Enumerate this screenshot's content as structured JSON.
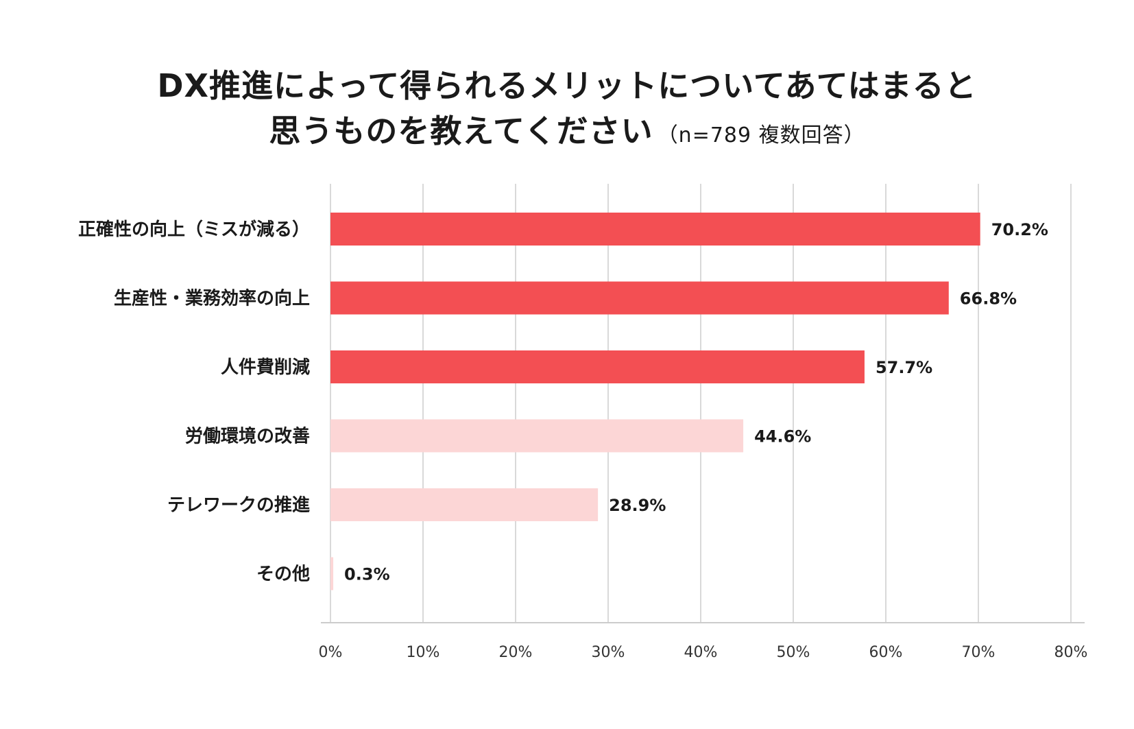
{
  "chart_data": {
    "type": "bar",
    "orientation": "horizontal",
    "title": "DX推進によって得られるメリットについてあてはまると思うものを教えてください",
    "title_line1": "DX推進によって得られるメリットについてあてはまると",
    "title_line2": "思うものを教えてください",
    "subtitle": "（n=789 複数回答）",
    "categories": [
      "正確性の向上（ミスが減る）",
      "生産性・業務効率の向上",
      "人件費削減",
      "労働環境の改善",
      "テレワークの推進",
      "その他"
    ],
    "values": [
      70.2,
      66.8,
      57.7,
      44.6,
      28.9,
      0.3
    ],
    "value_labels": [
      "70.2%",
      "66.8%",
      "57.7%",
      "44.6%",
      "28.9%",
      "0.3%"
    ],
    "highlighted": [
      true,
      true,
      true,
      false,
      false,
      false
    ],
    "x_ticks": [
      0,
      10,
      20,
      30,
      40,
      50,
      60,
      70,
      80
    ],
    "x_tick_labels": [
      "0%",
      "10%",
      "20%",
      "30%",
      "40%",
      "50%",
      "60%",
      "70%",
      "80%"
    ],
    "xlim": [
      0,
      80
    ],
    "xlabel": "",
    "ylabel": "",
    "grid": true,
    "legend": "none"
  },
  "colors": {
    "highlight": "#f34f53",
    "muted": "#fcd6d6",
    "grid": "#d9d9d9",
    "axis": "#cccccc"
  }
}
